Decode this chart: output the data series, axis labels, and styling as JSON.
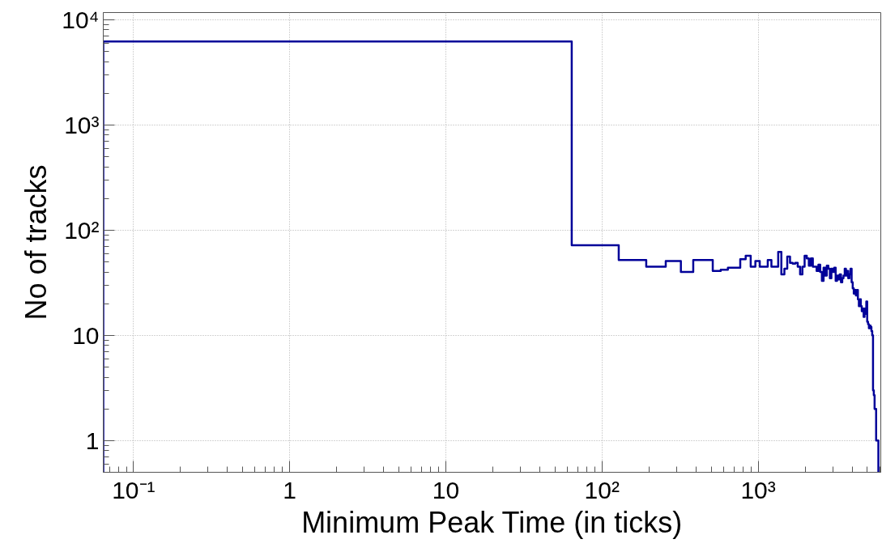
{
  "chart_data": {
    "type": "histogram",
    "xlabel": "Minimum Peak Time (in ticks)",
    "ylabel": "No of tracks",
    "bins": [
      0.064,
      64,
      128,
      192,
      256,
      320,
      384,
      448,
      512,
      576,
      640,
      704,
      768,
      832,
      896,
      960,
      1024,
      1088,
      1152,
      1216,
      1280,
      1344,
      1408,
      1472,
      1536,
      1600,
      1664,
      1728,
      1792,
      1856,
      1920,
      1984,
      2048,
      2112,
      2176,
      2240,
      2304,
      2368,
      2432,
      2496,
      2560,
      2624,
      2688,
      2752,
      2816,
      2880,
      2944,
      3008,
      3072,
      3136,
      3200,
      3264,
      3328,
      3392,
      3456,
      3520,
      3584,
      3648,
      3712,
      3776,
      3840,
      3904,
      3968,
      4032,
      4096,
      4160,
      4224,
      4288,
      4352,
      4416,
      4480,
      4544,
      4608,
      4672,
      4736,
      4800,
      4864,
      4928,
      4992,
      5056,
      5120,
      5184,
      5248,
      5312,
      5376,
      5440,
      5504,
      5568,
      5632,
      5696,
      5760,
      5824,
      5888
    ],
    "values": [
      6200,
      72,
      52,
      45,
      51,
      40,
      52,
      52,
      41,
      42,
      44,
      44,
      53,
      57,
      45,
      51,
      45,
      45,
      52,
      45,
      45,
      62,
      38,
      43,
      56,
      49,
      48,
      49,
      45,
      38,
      45,
      57,
      54,
      46,
      54,
      45,
      45,
      41,
      47,
      40,
      33,
      44,
      37,
      46,
      43,
      35,
      43,
      40,
      44,
      33,
      37,
      34,
      38,
      32,
      35,
      37,
      43,
      37,
      41,
      35,
      38,
      43,
      32,
      28,
      25,
      27,
      24,
      27,
      22,
      19,
      22,
      19,
      17,
      18,
      15,
      18,
      16,
      21,
      13.5,
      12.8,
      11.7,
      12.4,
      12,
      11,
      10,
      3,
      2.7,
      2,
      2,
      1,
      1,
      1
    ],
    "color": "#000099",
    "xlim": [
      0.064,
      6100
    ],
    "ylim": [
      0.5,
      11700
    ],
    "xticks": [
      {
        "value": 0.1,
        "label": "10⁻¹"
      },
      1,
      10,
      {
        "value": 100,
        "label": "10²"
      },
      {
        "value": 1000,
        "label": "10³"
      }
    ],
    "yticks": [
      1,
      10,
      {
        "value": 100,
        "label": "10²"
      },
      {
        "value": 1000,
        "label": "10³"
      },
      {
        "value": 10000,
        "label": "10⁴"
      }
    ],
    "log": "xy",
    "grid": true
  }
}
